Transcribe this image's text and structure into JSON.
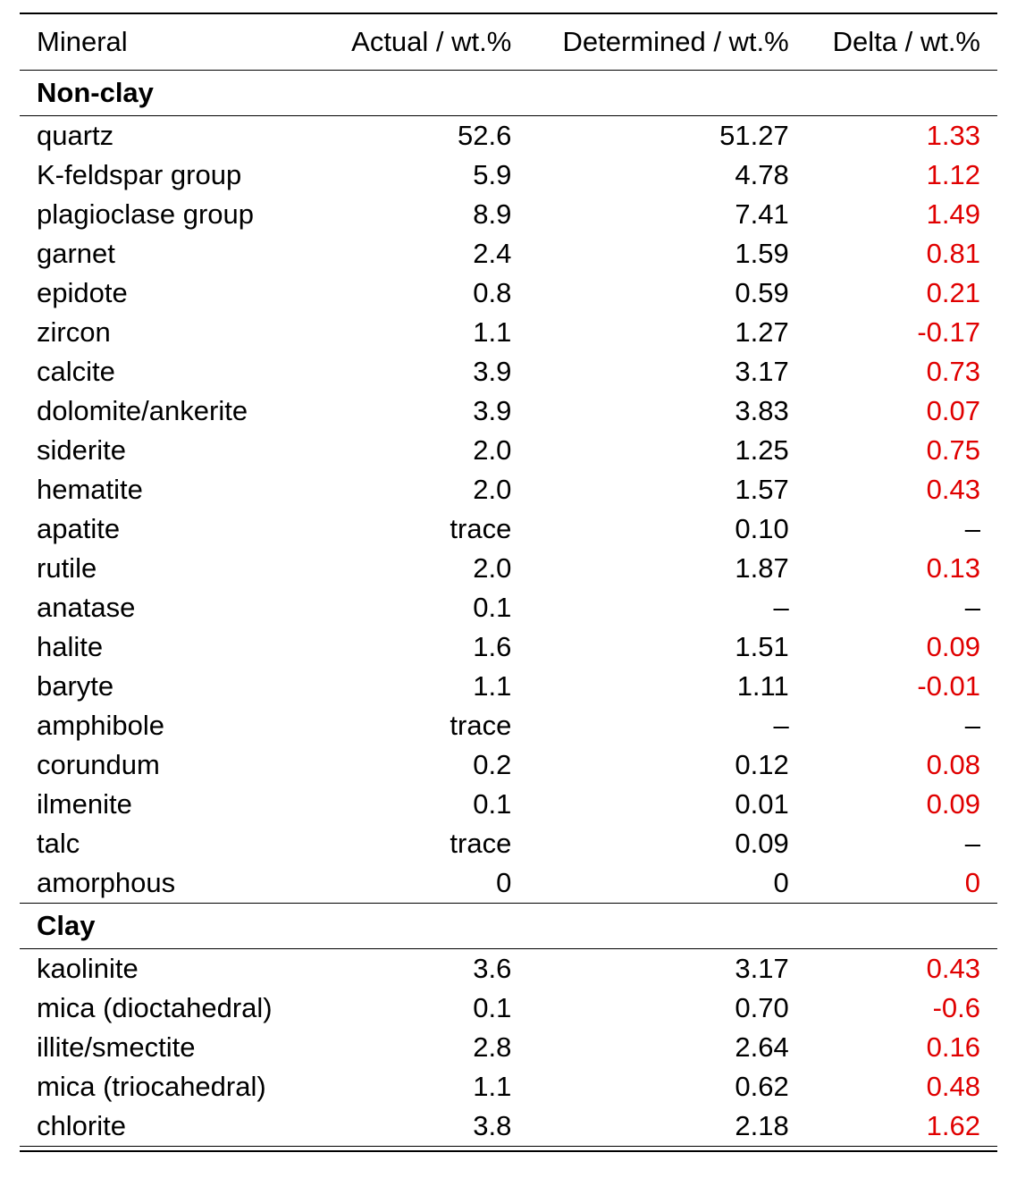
{
  "table": {
    "columns": [
      "Mineral",
      "Actual / wt.%",
      "Determined / wt.%",
      "Delta / wt.%"
    ],
    "sections": [
      {
        "title": "Non-clay",
        "rows": [
          {
            "mineral": "quartz",
            "actual": "52.6",
            "determined": "51.27",
            "delta": "1.33"
          },
          {
            "mineral": "K-feldspar group",
            "actual": "5.9",
            "determined": "4.78",
            "delta": "1.12"
          },
          {
            "mineral": "plagioclase group",
            "actual": "8.9",
            "determined": "7.41",
            "delta": "1.49"
          },
          {
            "mineral": "garnet",
            "actual": "2.4",
            "determined": "1.59",
            "delta": "0.81"
          },
          {
            "mineral": "epidote",
            "actual": "0.8",
            "determined": "0.59",
            "delta": "0.21"
          },
          {
            "mineral": "zircon",
            "actual": "1.1",
            "determined": "1.27",
            "delta": "-0.17"
          },
          {
            "mineral": "calcite",
            "actual": "3.9",
            "determined": "3.17",
            "delta": "0.73"
          },
          {
            "mineral": "dolomite/ankerite",
            "actual": "3.9",
            "determined": "3.83",
            "delta": "0.07"
          },
          {
            "mineral": "siderite",
            "actual": "2.0",
            "determined": "1.25",
            "delta": "0.75"
          },
          {
            "mineral": "hematite",
            "actual": "2.0",
            "determined": "1.57",
            "delta": "0.43"
          },
          {
            "mineral": "apatite",
            "actual": "trace",
            "determined": "0.10",
            "delta": "–"
          },
          {
            "mineral": "rutile",
            "actual": "2.0",
            "determined": "1.87",
            "delta": "0.13"
          },
          {
            "mineral": "anatase",
            "actual": "0.1",
            "determined": "–",
            "delta": "–"
          },
          {
            "mineral": "halite",
            "actual": "1.6",
            "determined": "1.51",
            "delta": "0.09"
          },
          {
            "mineral": "baryte",
            "actual": "1.1",
            "determined": "1.11",
            "delta": "-0.01"
          },
          {
            "mineral": "amphibole",
            "actual": "trace",
            "determined": "–",
            "delta": "–"
          },
          {
            "mineral": "corundum",
            "actual": "0.2",
            "determined": "0.12",
            "delta": "0.08"
          },
          {
            "mineral": "ilmenite",
            "actual": "0.1",
            "determined": "0.01",
            "delta": "0.09"
          },
          {
            "mineral": "talc",
            "actual": "trace",
            "determined": "0.09",
            "delta": "–"
          },
          {
            "mineral": "amorphous",
            "actual": "0",
            "determined": "0",
            "delta": "0"
          }
        ]
      },
      {
        "title": "Clay",
        "rows": [
          {
            "mineral": "kaolinite",
            "actual": "3.6",
            "determined": "3.17",
            "delta": "0.43"
          },
          {
            "mineral": "mica (dioctahedral)",
            "actual": "0.1",
            "determined": "0.70",
            "delta": "-0.6"
          },
          {
            "mineral": "illite/smectite",
            "actual": "2.8",
            "determined": "2.64",
            "delta": "0.16"
          },
          {
            "mineral": "mica (triocahedral)",
            "actual": "1.1",
            "determined": "0.62",
            "delta": "0.48"
          },
          {
            "mineral": "chlorite",
            "actual": "3.8",
            "determined": "2.18",
            "delta": "1.62"
          }
        ]
      }
    ],
    "colors": {
      "delta_value": "#e00000",
      "text": "#000000",
      "background": "#ffffff"
    }
  }
}
